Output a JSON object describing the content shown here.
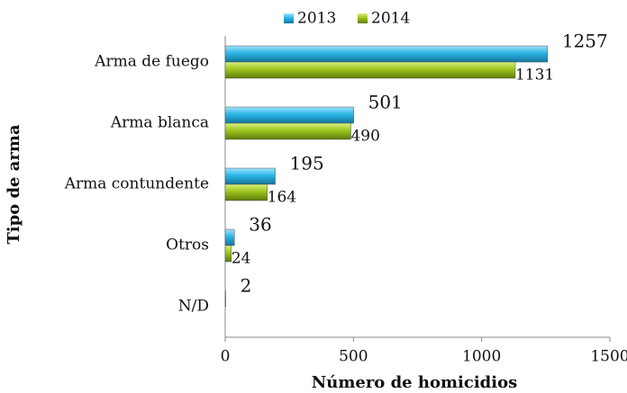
{
  "chart_data": {
    "type": "bar",
    "orientation": "horizontal",
    "categories": [
      "Arma de fuego",
      "Arma blanca",
      "Arma contundente",
      "Otros",
      "N/D"
    ],
    "series": [
      {
        "name": "2013",
        "color": "#2bb5e6",
        "values": [
          1257,
          501,
          195,
          36,
          2
        ]
      },
      {
        "name": "2014",
        "color": "#9cc41e",
        "values": [
          1131,
          490,
          164,
          24,
          null
        ]
      }
    ],
    "xlim": [
      0,
      1500
    ],
    "xticks": [
      0,
      500,
      1000,
      1500
    ],
    "xlabel": "Número de homicidios",
    "ylabel": "Tipo de arma",
    "legend": "top"
  }
}
